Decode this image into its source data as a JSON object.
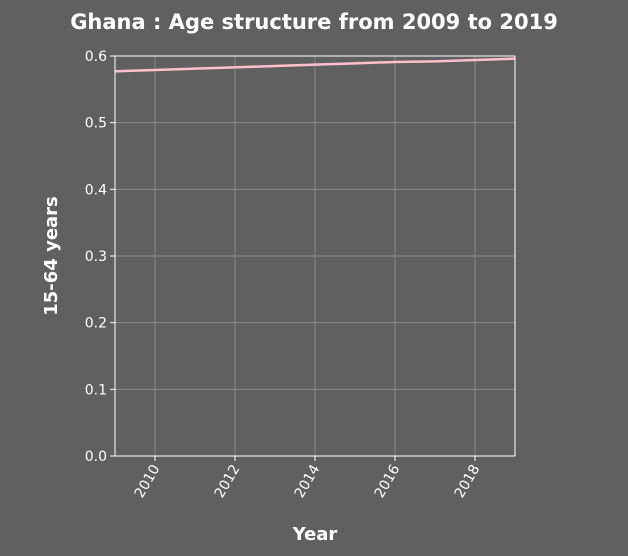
{
  "chart_data": {
    "type": "line",
    "title": "Ghana : Age structure from 2009 to 2019",
    "xlabel": "Year",
    "ylabel": "15-64 years",
    "xlim": [
      2009,
      2019
    ],
    "ylim": [
      0,
      0.6
    ],
    "x_ticks": [
      "2010",
      "2012",
      "2014",
      "2016",
      "2018"
    ],
    "y_ticks": [
      "0.0",
      "0.1",
      "0.2",
      "0.3",
      "0.4",
      "0.5",
      "0.6"
    ],
    "grid": true,
    "series": [
      {
        "color": "#ffc0cb",
        "x": [
          2009,
          2010,
          2011,
          2012,
          2013,
          2014,
          2015,
          2016,
          2017,
          2018,
          2019
        ],
        "values": [
          0.577,
          0.579,
          0.581,
          0.583,
          0.585,
          0.587,
          0.589,
          0.591,
          0.592,
          0.594,
          0.596
        ]
      }
    ]
  }
}
